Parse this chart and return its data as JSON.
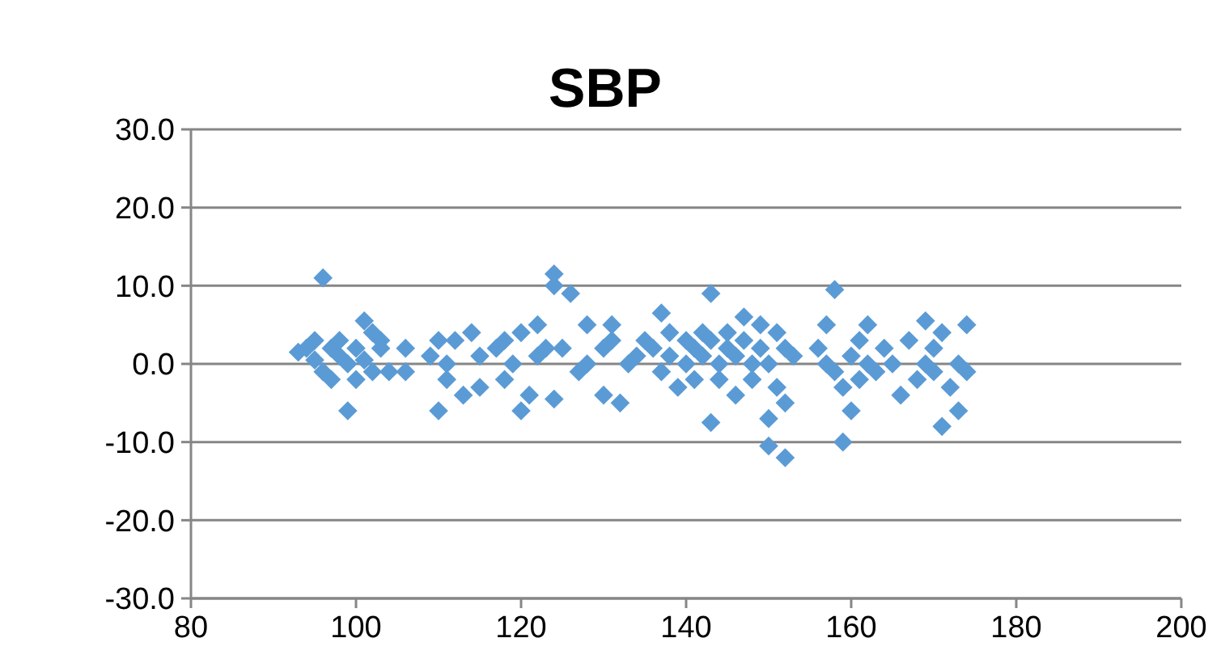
{
  "chart_data": {
    "type": "scatter",
    "title": "SBP",
    "marker": "diamond",
    "grid": "y",
    "xlim": [
      80,
      200
    ],
    "xticks": [
      80,
      100,
      120,
      140,
      160,
      180,
      200
    ],
    "ylim": [
      -30,
      30
    ],
    "yticks": [
      {
        "value": -30,
        "label": "-30.0"
      },
      {
        "value": -20,
        "label": "-20.0"
      },
      {
        "value": -10,
        "label": "-10.0"
      },
      {
        "value": 0,
        "label": "0.0"
      },
      {
        "value": 10,
        "label": "10.0"
      },
      {
        "value": 20,
        "label": "20.0"
      },
      {
        "value": 30,
        "label": "30.0"
      }
    ],
    "series": [
      {
        "color": "#5b9bd5",
        "x": [
          93,
          94,
          95,
          95,
          96,
          96,
          97,
          97,
          98,
          98,
          99,
          99,
          100,
          100,
          101,
          101,
          102,
          102,
          103,
          103,
          104,
          106,
          106,
          109,
          110,
          110,
          111,
          111,
          112,
          113,
          114,
          115,
          115,
          117,
          118,
          118,
          119,
          120,
          120,
          121,
          122,
          122,
          123,
          124,
          124,
          124,
          125,
          126,
          127,
          128,
          128,
          130,
          130,
          131,
          131,
          132,
          133,
          134,
          135,
          136,
          137,
          137,
          138,
          138,
          139,
          140,
          140,
          141,
          141,
          142,
          142,
          143,
          143,
          143,
          144,
          144,
          145,
          145,
          146,
          146,
          147,
          147,
          148,
          148,
          149,
          149,
          150,
          150,
          150,
          151,
          151,
          152,
          152,
          152,
          153,
          156,
          157,
          157,
          158,
          158,
          159,
          159,
          160,
          160,
          161,
          161,
          162,
          162,
          163,
          164,
          165,
          166,
          167,
          168,
          169,
          169,
          170,
          170,
          171,
          171,
          172,
          173,
          173,
          174,
          174
        ],
        "values": [
          1.5,
          2,
          0.5,
          3,
          11,
          -1,
          2,
          -2,
          1,
          3,
          -6,
          0,
          2,
          -2,
          0.5,
          5.5,
          4,
          -1,
          2,
          3,
          -1,
          2,
          -1,
          1,
          3,
          -6,
          -2,
          0,
          3,
          -4,
          4,
          1,
          -3,
          2,
          3,
          -2,
          0,
          4,
          -6,
          -4,
          5,
          1,
          2,
          11.5,
          10,
          -4.5,
          2,
          9,
          -1,
          5,
          0,
          2,
          -4,
          5,
          3,
          -5,
          0,
          1,
          3,
          2,
          6.5,
          -1,
          4,
          1,
          -3,
          3,
          0,
          2,
          -2,
          4,
          1,
          9,
          -7.5,
          3,
          0,
          -2,
          4,
          2,
          1,
          -4,
          6,
          3,
          0,
          -2,
          5,
          2,
          -10.5,
          -7,
          0,
          4,
          -3,
          -12,
          2,
          -5,
          1,
          2,
          5,
          0,
          9.5,
          -1,
          -10,
          -3,
          -6,
          1,
          3,
          -2,
          5,
          0,
          -1,
          2,
          0,
          -4,
          3,
          -2,
          5.5,
          0,
          2,
          -1,
          -8,
          4,
          -3,
          -6,
          0,
          5,
          -1
        ]
      }
    ]
  }
}
